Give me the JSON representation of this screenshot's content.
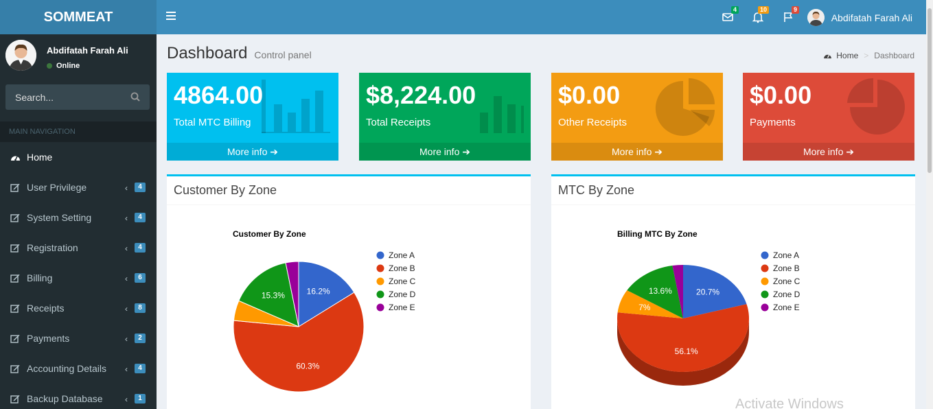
{
  "app": {
    "logo": "SOMMEAT",
    "user_name": "Abdifatah Farah Ali",
    "status": "Online",
    "notifications": {
      "messages": "4",
      "alerts": "10",
      "tasks": "9"
    }
  },
  "sidebar": {
    "search_placeholder": "Search...",
    "nav_header": "MAIN NAVIGATION",
    "items": [
      {
        "label": "Home",
        "count": ""
      },
      {
        "label": "User Privilege",
        "count": "4"
      },
      {
        "label": "System Setting",
        "count": "4"
      },
      {
        "label": "Registration",
        "count": "4"
      },
      {
        "label": "Billing",
        "count": "6"
      },
      {
        "label": "Receipts",
        "count": "8"
      },
      {
        "label": "Payments",
        "count": "2"
      },
      {
        "label": "Accounting Details",
        "count": "4"
      },
      {
        "label": "Backup Database",
        "count": "1"
      }
    ]
  },
  "page": {
    "title": "Dashboard",
    "subtitle": "Control panel",
    "breadcrumb": [
      "Home",
      "Dashboard"
    ]
  },
  "stats": [
    {
      "value": "4864.00",
      "label": "Total MTC Billing",
      "more": "More info",
      "color": "#00c0ef",
      "icon": "bar-chart-icon"
    },
    {
      "value": "$8,224.00",
      "label": "Total Receipts",
      "more": "More info",
      "color": "#00a65a",
      "icon": "bar-chart-icon"
    },
    {
      "value": "$0.00",
      "label": "Other Receipts",
      "more": "More info",
      "color": "#f39c12",
      "icon": "pie-chart-icon"
    },
    {
      "value": "$0.00",
      "label": "Payments",
      "more": "More info",
      "color": "#dd4b39",
      "icon": "pie-chart-icon"
    }
  ],
  "boxes": [
    {
      "title": "Customer By Zone"
    },
    {
      "title": "MTC By Zone"
    }
  ],
  "chart_data": [
    {
      "type": "pie",
      "title": "Customer By Zone",
      "categories": [
        "Zone A",
        "Zone B",
        "Zone C",
        "Zone D",
        "Zone E"
      ],
      "values": [
        16.2,
        60.3,
        5.0,
        15.3,
        3.2
      ],
      "labels": [
        "16.2%",
        "60.3%",
        "",
        "15.3%",
        ""
      ],
      "colors": [
        "#3366cc",
        "#dc3912",
        "#ff9900",
        "#109618",
        "#990099"
      ],
      "legend": "right"
    },
    {
      "type": "pie",
      "title": "Billing MTC By Zone",
      "categories": [
        "Zone A",
        "Zone B",
        "Zone C",
        "Zone D",
        "Zone E"
      ],
      "values": [
        20.7,
        56.1,
        7.0,
        13.6,
        2.6
      ],
      "labels": [
        "20.7%",
        "56.1%",
        "7%",
        "13.6%",
        ""
      ],
      "colors": [
        "#3366cc",
        "#dc3912",
        "#ff9900",
        "#109618",
        "#990099"
      ],
      "legend": "right",
      "three_d": true
    }
  ],
  "watermark": "Activate Windows"
}
